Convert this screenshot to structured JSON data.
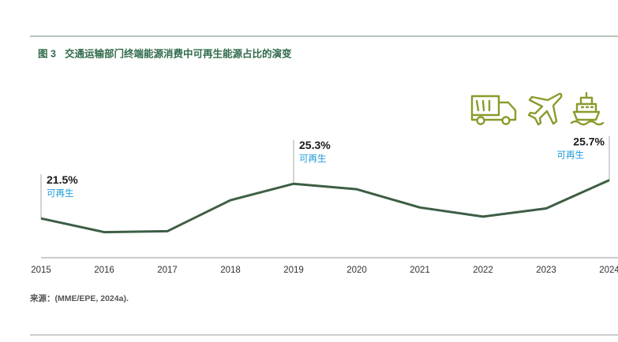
{
  "chart_data": {
    "type": "line",
    "figure_label": "图 3",
    "title": "交通运输部门终端能源消费中可再生能源占比的演变",
    "categories": [
      "2015",
      "2016",
      "2017",
      "2018",
      "2019",
      "2020",
      "2021",
      "2022",
      "2023",
      "2024"
    ],
    "values": [
      21.5,
      20.0,
      20.1,
      23.5,
      25.3,
      24.7,
      22.7,
      21.7,
      22.6,
      25.7
    ],
    "value_labels": [
      "21.5%",
      null,
      null,
      null,
      "25.3%",
      null,
      null,
      null,
      null,
      "25.7%"
    ],
    "annotation": "可再生",
    "color": "#3d5e45",
    "ylim": [
      17.2,
      30
    ],
    "source": "来源：(MME/EPE, 2024a)."
  }
}
